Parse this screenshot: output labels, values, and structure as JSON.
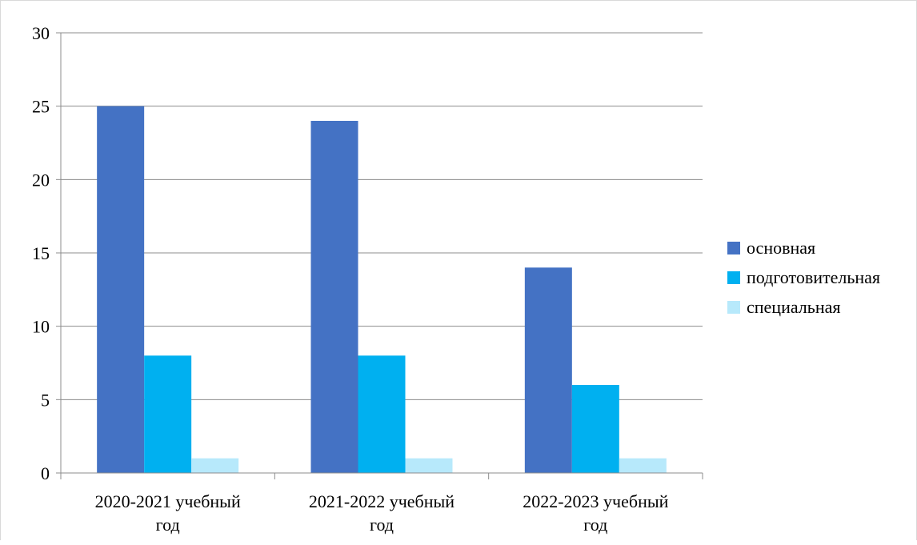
{
  "chart_data": {
    "type": "bar",
    "categories": [
      [
        "2020-2021 учебный",
        "год"
      ],
      [
        "2021-2022 учебный",
        "год"
      ],
      [
        "2022-2023 учебный",
        "год"
      ]
    ],
    "series": [
      {
        "name": "основная",
        "color": "#4472c4",
        "values": [
          25,
          24,
          14
        ]
      },
      {
        "name": "подготовительная",
        "color": "#00b0f0",
        "values": [
          8,
          8,
          6
        ]
      },
      {
        "name": "специальная",
        "color": "#b7e9fb",
        "values": [
          1,
          1,
          1
        ]
      }
    ],
    "ylim": [
      0,
      30
    ],
    "yticks": [
      0,
      5,
      10,
      15,
      20,
      25,
      30
    ],
    "grid": true,
    "legend_position": "right"
  }
}
